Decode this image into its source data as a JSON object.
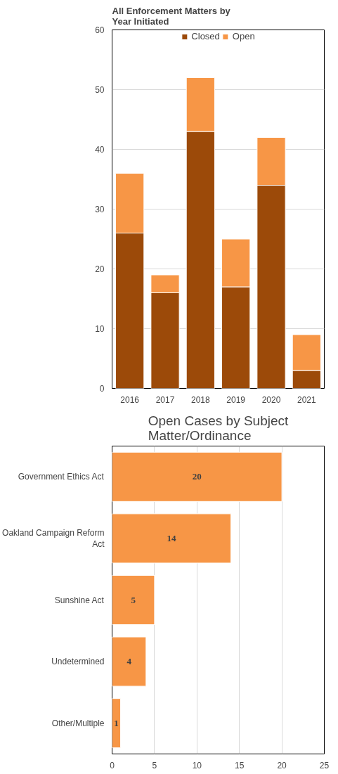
{
  "chart_data": [
    {
      "type": "bar",
      "title": "All Enforcement Matters by\nYear Initiated",
      "categories": [
        "2016",
        "2017",
        "2018",
        "2019",
        "2020",
        "2021"
      ],
      "stacked": true,
      "series": [
        {
          "name": "Closed",
          "color": "#9c4a09",
          "values": [
            26,
            16,
            43,
            17,
            34,
            3
          ]
        },
        {
          "name": "Open",
          "color": "#f79646",
          "values": [
            10,
            3,
            9,
            8,
            8,
            6
          ]
        }
      ],
      "ylim": [
        0,
        60
      ],
      "yticks": [
        0,
        10,
        20,
        30,
        40,
        50,
        60
      ],
      "grid": "y",
      "legend": "top"
    },
    {
      "type": "bar",
      "orientation": "horizontal",
      "title": "Open Cases by Subject\nMatter/Ordinance",
      "categories": [
        "Government Ethics Act",
        "Oakland Campaign Reform\nAct",
        "Sunshine Act",
        "Undetermined",
        "Other/Multiple"
      ],
      "series": [
        {
          "color": "#f79646",
          "values": [
            20,
            14,
            5,
            4,
            1
          ]
        }
      ],
      "xlim": [
        0,
        25
      ],
      "xticks": [
        0,
        5,
        10,
        15,
        20,
        25
      ],
      "grid": "x",
      "data_labels": true
    }
  ]
}
